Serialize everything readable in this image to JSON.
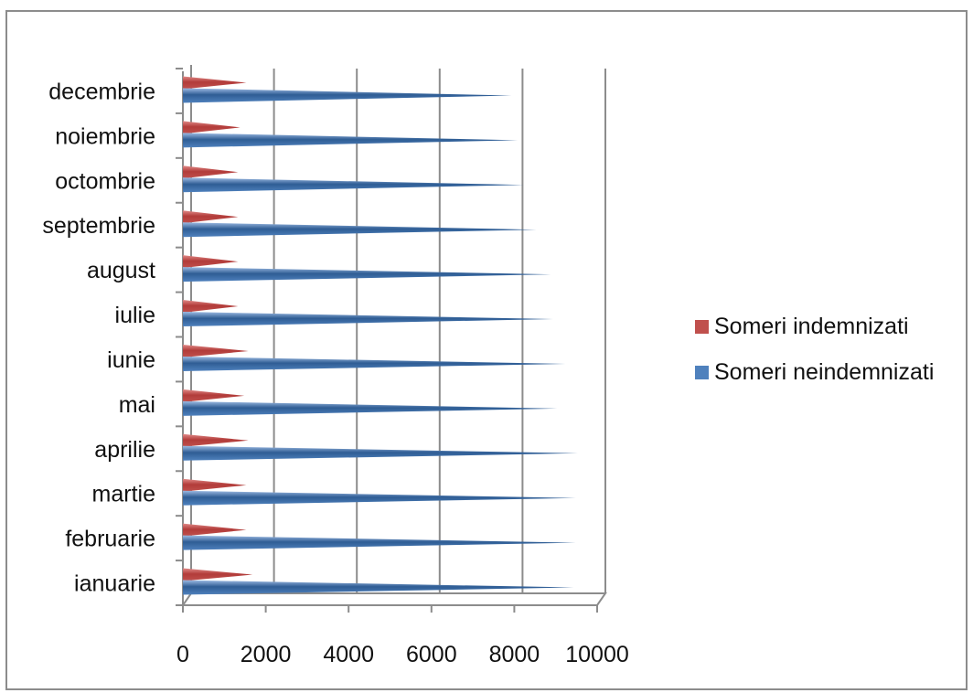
{
  "chart_data": {
    "type": "bar",
    "orientation": "horizontal",
    "style": "3d-cone",
    "categories": [
      "ianuarie",
      "februarie",
      "martie",
      "aprilie",
      "mai",
      "iunie",
      "iulie",
      "august",
      "septembrie",
      "octombrie",
      "noiembrie",
      "decembrie"
    ],
    "series": [
      {
        "name": "Someri indemnizati",
        "color": "#c0504d",
        "values": [
          1550,
          1400,
          1400,
          1450,
          1350,
          1450,
          1200,
          1200,
          1200,
          1200,
          1250,
          1400
        ]
      },
      {
        "name": "Someri neindemnizati",
        "color": "#4f81bd",
        "values": [
          9300,
          9350,
          9350,
          9400,
          8900,
          9100,
          8800,
          8750,
          8400,
          8100,
          7950,
          7800
        ]
      }
    ],
    "xlim": [
      0,
      10000
    ],
    "xticks": [
      "0",
      "2000",
      "4000",
      "6000",
      "8000",
      "10000"
    ],
    "grid": true,
    "legend_position": "right"
  }
}
